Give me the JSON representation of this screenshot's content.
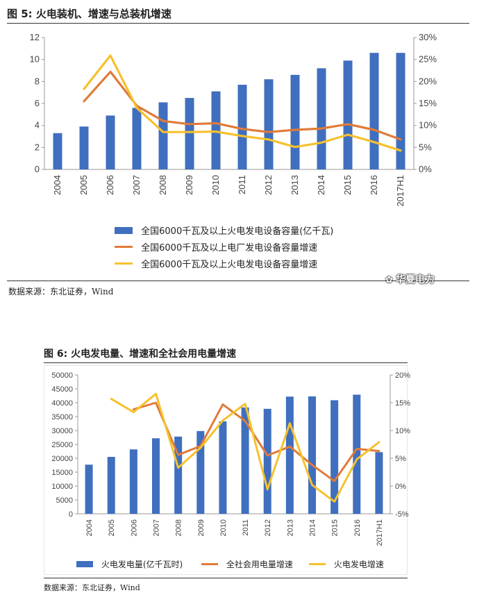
{
  "figure1": {
    "title": "图 5: 火电装机、增速与总装机增速",
    "source": "数据来源：东北证券，Wind",
    "chart_data": {
      "type": "bar",
      "categories": [
        "2004",
        "2005",
        "2006",
        "2007",
        "2008",
        "2009",
        "2010",
        "2011",
        "2012",
        "2013",
        "2014",
        "2015",
        "2016",
        "2017H1"
      ],
      "left_axis": {
        "ylim": [
          0,
          12
        ],
        "ticks": [
          "0",
          "2",
          "4",
          "6",
          "8",
          "10",
          "12"
        ]
      },
      "right_axis": {
        "ylim": [
          0,
          30
        ],
        "ticks": [
          "0%",
          "5%",
          "10%",
          "15%",
          "20%",
          "25%",
          "30%"
        ]
      },
      "series": [
        {
          "name": "全国6000千瓦及以上火电发电设备容量(亿千瓦)",
          "kind": "bar",
          "axis": "left",
          "color": "#3f6fbe",
          "values": [
            3.3,
            3.9,
            4.9,
            5.6,
            6.1,
            6.5,
            7.1,
            7.7,
            8.2,
            8.6,
            9.2,
            9.9,
            10.6,
            10.6
          ]
        },
        {
          "name": "全国6000千瓦及以上电厂发电设备容量增速",
          "kind": "line",
          "axis": "right",
          "color": "#e07b39",
          "values": [
            null,
            15.5,
            22.2,
            14.5,
            11.0,
            10.3,
            10.5,
            9.2,
            8.5,
            9.0,
            9.3,
            10.3,
            9.0,
            6.8
          ]
        },
        {
          "name": "全国6000千瓦及以上火电发电设备容量增速",
          "kind": "line",
          "axis": "right",
          "color": "#f6c12d",
          "values": [
            null,
            18.3,
            25.9,
            14.0,
            8.5,
            8.5,
            8.6,
            7.6,
            6.8,
            5.1,
            6.1,
            7.9,
            6.2,
            4.3
          ]
        }
      ]
    }
  },
  "figure2": {
    "title": "图 6: 火电发电量、增速和全社会用电量增速",
    "source": "数据来源：东北证券，Wind",
    "chart_data": {
      "type": "bar",
      "categories": [
        "2004",
        "2005",
        "2006",
        "2007",
        "2008",
        "2009",
        "2010",
        "2011",
        "2012",
        "2013",
        "2014",
        "2015",
        "2016",
        "2017H1"
      ],
      "left_axis": {
        "ylim": [
          0,
          50000
        ],
        "ticks": [
          "0",
          "5000",
          "10000",
          "15000",
          "20000",
          "25000",
          "30000",
          "35000",
          "40000",
          "45000",
          "50000"
        ]
      },
      "right_axis": {
        "ylim": [
          -5,
          20
        ],
        "ticks": [
          "-5%",
          "0%",
          "5%",
          "10%",
          "15%",
          "20%"
        ]
      },
      "series": [
        {
          "name": "火电发电量(亿千瓦时)",
          "kind": "bar",
          "axis": "left",
          "color": "#3f6fbe",
          "values": [
            17700,
            20500,
            23200,
            27200,
            27800,
            29800,
            33300,
            38300,
            37800,
            42200,
            42300,
            40900,
            42900,
            22200
          ]
        },
        {
          "name": "全社会用电量增速",
          "kind": "line",
          "axis": "right",
          "color": "#e07b39",
          "values": [
            null,
            null,
            13.8,
            15.0,
            5.6,
            7.2,
            14.7,
            11.7,
            5.5,
            7.1,
            3.8,
            0.9,
            6.7,
            6.3
          ]
        },
        {
          "name": "火电发电增速",
          "kind": "line",
          "axis": "right",
          "color": "#f6c12d",
          "values": [
            null,
            15.7,
            13.3,
            16.6,
            3.3,
            6.9,
            11.8,
            14.8,
            -0.6,
            11.3,
            0.2,
            -2.8,
            4.8,
            7.9
          ]
        }
      ]
    }
  },
  "watermark": {
    "icon": "wechat-icon",
    "text": "华夏电力"
  }
}
